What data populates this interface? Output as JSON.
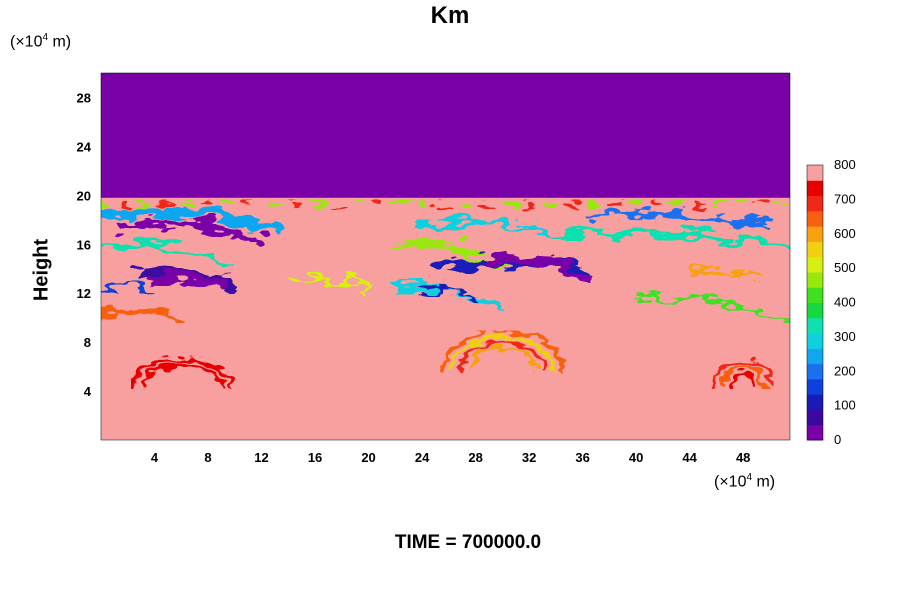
{
  "chart_data": {
    "type": "heatmap",
    "title": "Km",
    "xlabel": "",
    "ylabel": "Height",
    "x_unit_prefix": "(×10",
    "x_unit_exp": "4",
    "x_unit_suffix": " m)",
    "y_unit_prefix": "(×10",
    "y_unit_exp": "4",
    "y_unit_suffix": " m)",
    "xlim": [
      0,
      51.5
    ],
    "ylim": [
      0,
      30
    ],
    "x_ticks": [
      4,
      8,
      12,
      16,
      20,
      24,
      28,
      32,
      36,
      40,
      44,
      48
    ],
    "y_ticks": [
      4,
      8,
      12,
      16,
      20,
      24,
      28
    ],
    "colorbar": {
      "min": 0,
      "max": 800,
      "ticks": [
        0,
        100,
        200,
        300,
        400,
        500,
        600,
        700,
        800
      ],
      "colors": [
        "#7a00a8",
        "#3a0aa0",
        "#1a1ab8",
        "#1040dc",
        "#1c70f0",
        "#10a6f0",
        "#10d0e0",
        "#10e0b0",
        "#18d840",
        "#40e020",
        "#98e810",
        "#d8f010",
        "#f0d010",
        "#f8a010",
        "#f86010",
        "#f02818",
        "#e80000",
        "#f8a0a0"
      ]
    },
    "field_description_regions": {
      "top_layer_value": 0,
      "background_value": 800,
      "top_layer_base_height": 19.8
    },
    "time_text": "TIME = 700000.0"
  }
}
